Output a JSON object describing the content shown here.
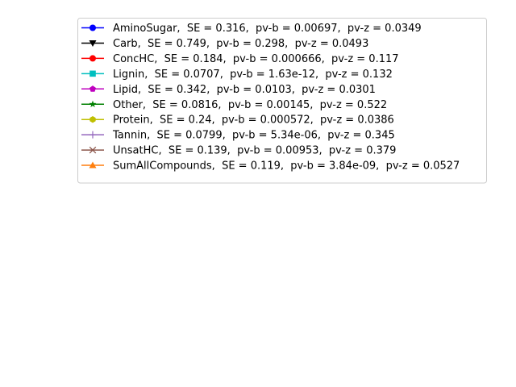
{
  "chart_data": {
    "type": "line",
    "title": "",
    "xlabel": "",
    "ylabel": "",
    "grid": false,
    "legend_location": "upper right",
    "series": [
      {
        "name": "AminoSugar,  SE = 0.316,  pv-b = 0.00697,  pv-z = 0.0349",
        "color": "#0000ff",
        "marker": "circle",
        "values": []
      },
      {
        "name": "Carb,  SE = 0.749,  pv-b = 0.298,  pv-z = 0.0493",
        "color": "#000000",
        "marker": "triangle-down",
        "values": []
      },
      {
        "name": "ConcHC,  SE = 0.184,  pv-b = 0.000666,  pv-z = 0.117",
        "color": "#ff0000",
        "marker": "circle",
        "values": []
      },
      {
        "name": "Lignin,  SE = 0.0707,  pv-b = 1.63e-12,  pv-z = 0.132",
        "color": "#00bfbf",
        "marker": "square",
        "values": []
      },
      {
        "name": "Lipid,  SE = 0.342,  pv-b = 0.0103,  pv-z = 0.0301",
        "color": "#bf00bf",
        "marker": "pentagon",
        "values": []
      },
      {
        "name": "Other,  SE = 0.0816,  pv-b = 0.00145,  pv-z = 0.522",
        "color": "#008000",
        "marker": "star",
        "values": []
      },
      {
        "name": "Protein,  SE = 0.24,  pv-b = 0.000572,  pv-z = 0.0386",
        "color": "#bfbf00",
        "marker": "hexagon",
        "values": []
      },
      {
        "name": "Tannin,  SE = 0.0799,  pv-b = 5.34e-06,  pv-z = 0.345",
        "color": "#9467bd",
        "marker": "plus",
        "values": []
      },
      {
        "name": "UnsatHC,  SE = 0.139,  pv-b = 0.00953,  pv-z = 0.379",
        "color": "#8c564b",
        "marker": "x",
        "values": []
      },
      {
        "name": "SumAllCompounds,  SE = 0.119,  pv-b = 3.84e-09,  pv-z = 0.0527",
        "color": "#ff7f0e",
        "marker": "triangle-up",
        "values": []
      }
    ]
  }
}
